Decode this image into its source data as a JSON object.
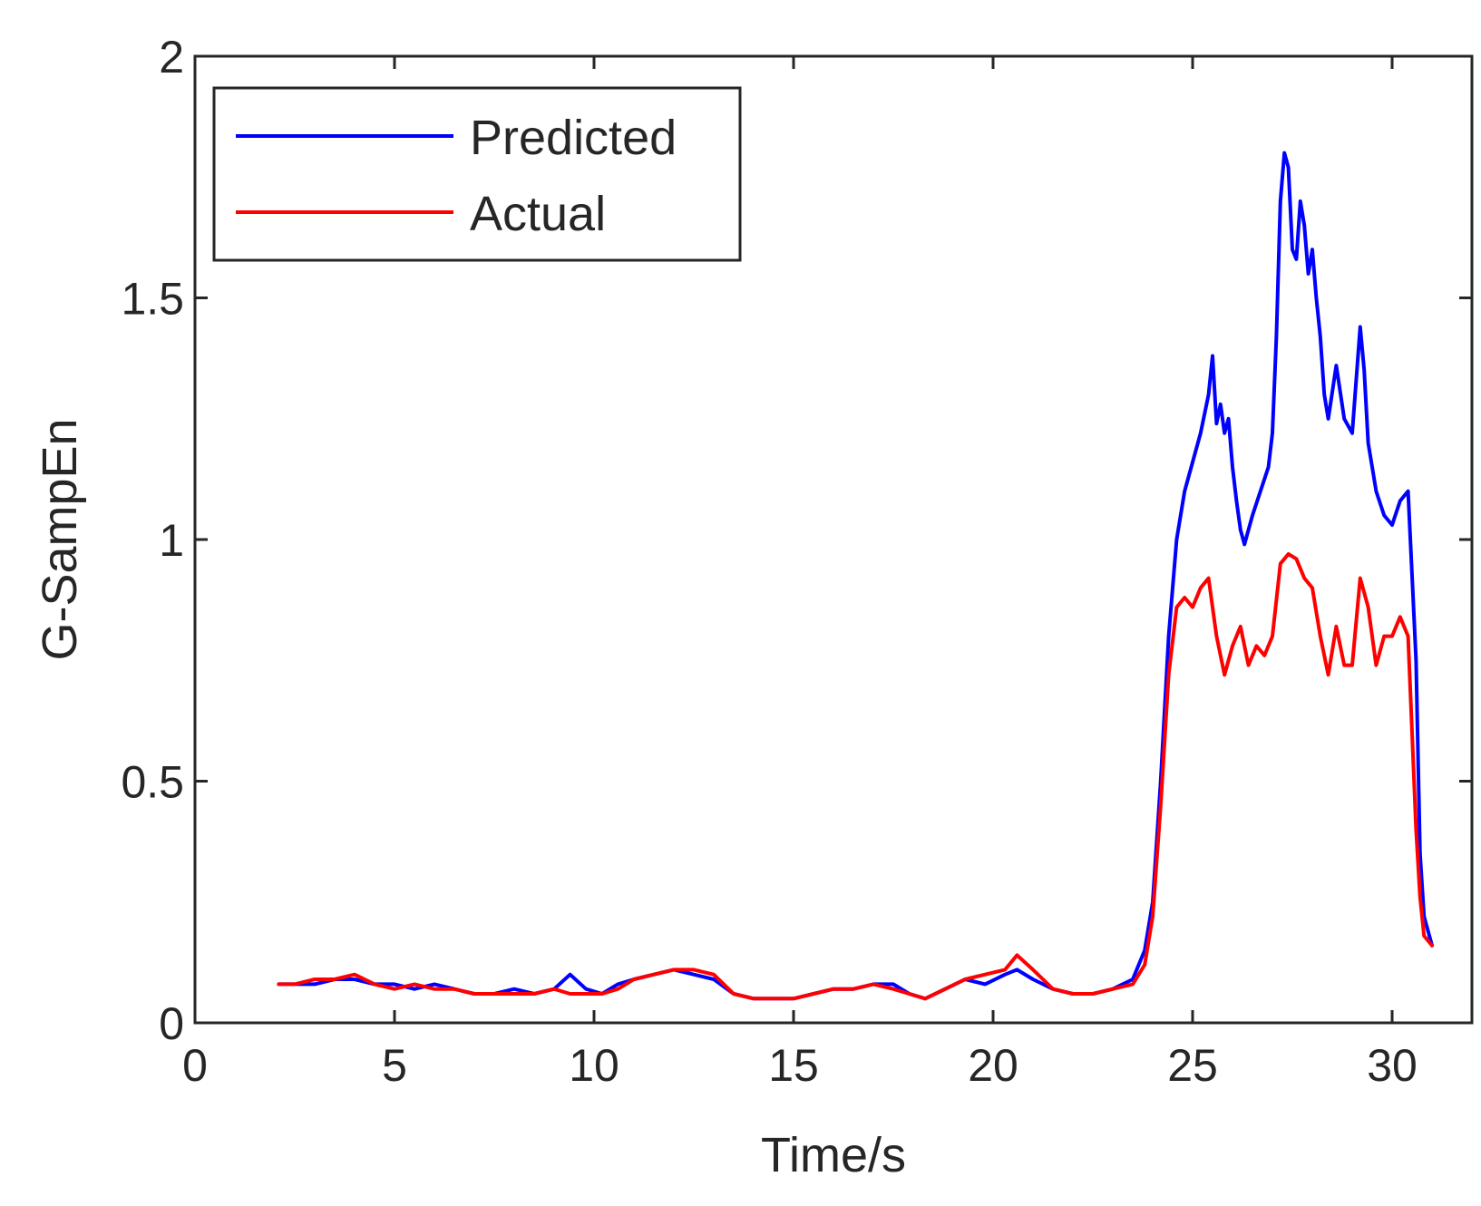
{
  "chart_data": {
    "type": "line",
    "title": "",
    "xlabel": "Time/s",
    "ylabel": "G-SampEn",
    "xlim": [
      0,
      32
    ],
    "ylim": [
      0,
      2
    ],
    "xticks": [
      0,
      5,
      10,
      15,
      20,
      25,
      30
    ],
    "yticks": [
      0,
      0.5,
      1,
      1.5,
      2
    ],
    "xtick_labels": [
      "0",
      "5",
      "10",
      "15",
      "20",
      "25",
      "30"
    ],
    "ytick_labels": [
      "0",
      "0.5",
      "1",
      "1.5",
      "2"
    ],
    "grid": false,
    "legend": "top-left",
    "series": [
      {
        "name": "Predicted",
        "color": "#0000ff",
        "x": [
          2.1,
          2.5,
          3.0,
          3.5,
          4.0,
          4.5,
          5.0,
          5.5,
          6.0,
          6.5,
          7.0,
          7.5,
          8.0,
          8.5,
          9.0,
          9.4,
          9.8,
          10.2,
          10.6,
          11.0,
          11.5,
          12.0,
          12.5,
          13.0,
          13.5,
          14.0,
          14.5,
          15.0,
          15.5,
          16.0,
          16.5,
          17.0,
          17.5,
          17.9,
          18.3,
          18.8,
          19.3,
          19.8,
          20.3,
          20.6,
          21.0,
          21.5,
          22.0,
          22.5,
          23.0,
          23.5,
          23.8,
          24.0,
          24.2,
          24.4,
          24.6,
          24.8,
          25.0,
          25.2,
          25.4,
          25.5,
          25.6,
          25.7,
          25.8,
          25.9,
          26.0,
          26.1,
          26.2,
          26.3,
          26.5,
          26.7,
          26.9,
          27.0,
          27.1,
          27.2,
          27.3,
          27.4,
          27.5,
          27.6,
          27.7,
          27.8,
          27.9,
          28.0,
          28.1,
          28.2,
          28.3,
          28.4,
          28.6,
          28.8,
          29.0,
          29.2,
          29.3,
          29.4,
          29.6,
          29.8,
          30.0,
          30.2,
          30.4,
          30.6,
          30.7,
          30.8,
          31.0
        ],
        "values": [
          0.08,
          0.08,
          0.08,
          0.09,
          0.09,
          0.08,
          0.08,
          0.07,
          0.08,
          0.07,
          0.06,
          0.06,
          0.07,
          0.06,
          0.07,
          0.1,
          0.07,
          0.06,
          0.08,
          0.09,
          0.1,
          0.11,
          0.1,
          0.09,
          0.06,
          0.05,
          0.05,
          0.05,
          0.06,
          0.07,
          0.07,
          0.08,
          0.08,
          0.06,
          0.05,
          0.07,
          0.09,
          0.08,
          0.1,
          0.11,
          0.09,
          0.07,
          0.06,
          0.06,
          0.07,
          0.09,
          0.15,
          0.25,
          0.5,
          0.8,
          1.0,
          1.1,
          1.16,
          1.22,
          1.3,
          1.38,
          1.24,
          1.28,
          1.22,
          1.25,
          1.15,
          1.08,
          1.02,
          0.99,
          1.05,
          1.1,
          1.15,
          1.22,
          1.42,
          1.7,
          1.8,
          1.77,
          1.6,
          1.58,
          1.7,
          1.65,
          1.55,
          1.6,
          1.5,
          1.42,
          1.3,
          1.25,
          1.36,
          1.25,
          1.22,
          1.44,
          1.35,
          1.2,
          1.1,
          1.05,
          1.03,
          1.08,
          1.1,
          0.75,
          0.35,
          0.22,
          0.16
        ]
      },
      {
        "name": "Actual",
        "color": "#ff0000",
        "x": [
          2.1,
          2.5,
          3.0,
          3.5,
          4.0,
          4.5,
          5.0,
          5.5,
          6.0,
          6.5,
          7.0,
          7.5,
          8.0,
          8.5,
          9.0,
          9.4,
          9.8,
          10.2,
          10.6,
          11.0,
          11.5,
          12.0,
          12.5,
          13.0,
          13.5,
          14.0,
          14.5,
          15.0,
          15.5,
          16.0,
          16.5,
          17.0,
          17.5,
          17.9,
          18.3,
          18.8,
          19.3,
          19.8,
          20.3,
          20.6,
          21.0,
          21.5,
          22.0,
          22.5,
          23.0,
          23.5,
          23.8,
          24.0,
          24.2,
          24.4,
          24.6,
          24.8,
          25.0,
          25.2,
          25.4,
          25.6,
          25.8,
          26.0,
          26.2,
          26.4,
          26.6,
          26.8,
          27.0,
          27.2,
          27.4,
          27.6,
          27.8,
          28.0,
          28.2,
          28.4,
          28.6,
          28.8,
          29.0,
          29.2,
          29.4,
          29.6,
          29.8,
          30.0,
          30.2,
          30.4,
          30.6,
          30.7,
          30.8,
          31.0
        ],
        "values": [
          0.08,
          0.08,
          0.09,
          0.09,
          0.1,
          0.08,
          0.07,
          0.08,
          0.07,
          0.07,
          0.06,
          0.06,
          0.06,
          0.06,
          0.07,
          0.06,
          0.06,
          0.06,
          0.07,
          0.09,
          0.1,
          0.11,
          0.11,
          0.1,
          0.06,
          0.05,
          0.05,
          0.05,
          0.06,
          0.07,
          0.07,
          0.08,
          0.07,
          0.06,
          0.05,
          0.07,
          0.09,
          0.1,
          0.11,
          0.14,
          0.11,
          0.07,
          0.06,
          0.06,
          0.07,
          0.08,
          0.12,
          0.22,
          0.45,
          0.72,
          0.86,
          0.88,
          0.86,
          0.9,
          0.92,
          0.8,
          0.72,
          0.78,
          0.82,
          0.74,
          0.78,
          0.76,
          0.8,
          0.95,
          0.97,
          0.96,
          0.92,
          0.9,
          0.8,
          0.72,
          0.82,
          0.74,
          0.74,
          0.92,
          0.86,
          0.74,
          0.8,
          0.8,
          0.84,
          0.8,
          0.4,
          0.26,
          0.18,
          0.16
        ]
      }
    ]
  }
}
